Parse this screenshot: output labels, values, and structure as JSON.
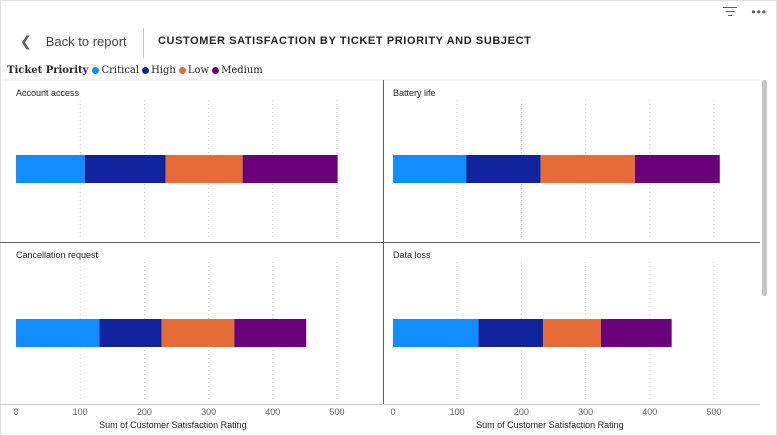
{
  "header": {
    "back_label": "Back to report",
    "title": "CUSTOMER SATISFACTION BY TICKET PRIORITY AND SUBJECT",
    "back_icon": "chevron-left-icon",
    "filter_icon": "filter-icon",
    "more_icon": "more-options-icon"
  },
  "legend": {
    "title": "Ticket Priority",
    "items": [
      {
        "label": "Critical",
        "color": "#118dff"
      },
      {
        "label": "High",
        "color": "#12239e"
      },
      {
        "label": "Low",
        "color": "#e66c37"
      },
      {
        "label": "Medium",
        "color": "#6b007b"
      }
    ]
  },
  "chart_data": {
    "type": "bar",
    "orientation": "horizontal",
    "stacked": true,
    "small_multiples": true,
    "xlabel": "Sum of Customer Satisfaction Rating",
    "xlim": [
      0,
      520
    ],
    "xticks": [
      0,
      100,
      200,
      300,
      400,
      500
    ],
    "grid": true,
    "legend_position": "top-left",
    "series_order": [
      "Critical",
      "High",
      "Low",
      "Medium"
    ],
    "panels": [
      {
        "title": "Account access",
        "values": {
          "Critical": 107,
          "High": 126,
          "Low": 120,
          "Medium": 148
        }
      },
      {
        "title": "Battery life",
        "values": {
          "Critical": 114,
          "High": 116,
          "Low": 147,
          "Medium": 132
        }
      },
      {
        "title": "Cancellation request",
        "values": {
          "Critical": 130,
          "High": 97,
          "Low": 113,
          "Medium": 112
        }
      },
      {
        "title": "Data loss",
        "values": {
          "Critical": 133,
          "High": 101,
          "Low": 90,
          "Medium": 110
        }
      }
    ]
  }
}
